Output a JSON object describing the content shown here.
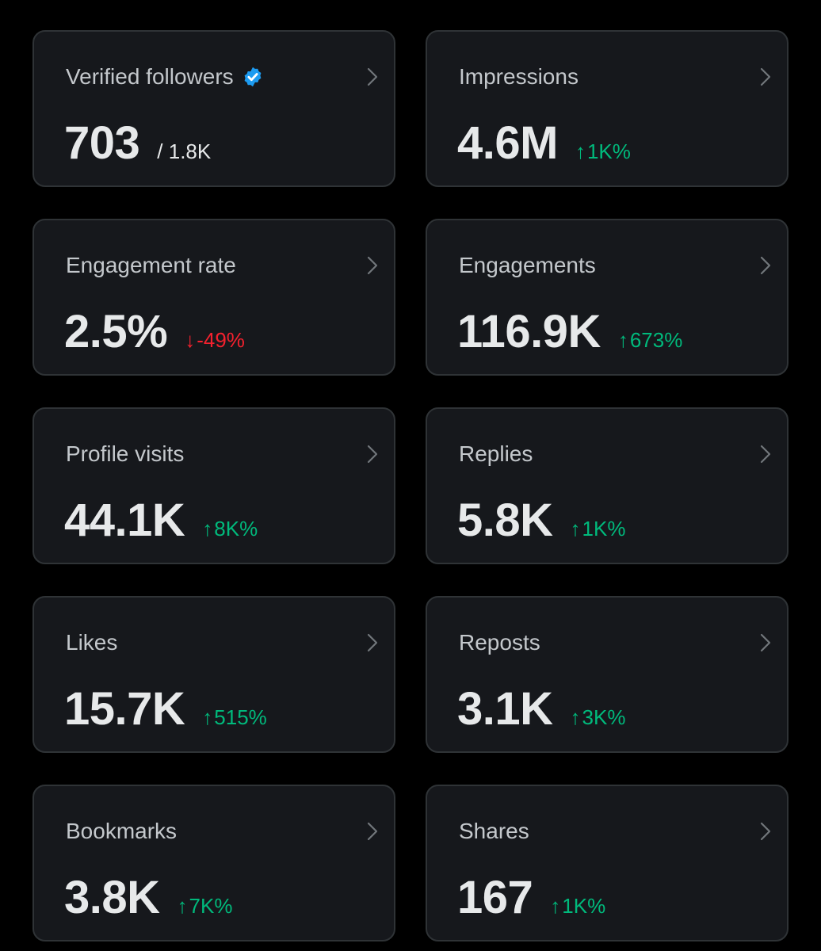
{
  "colors": {
    "background": "#000000",
    "card": "#16181c",
    "border": "#2f3336",
    "label": "#c4c8cc",
    "value": "#e7e9ea",
    "up": "#00ba7c",
    "down": "#f4212e",
    "verified": "#1d9bf0"
  },
  "metrics": [
    {
      "label": "Verified followers",
      "value": "703",
      "total": "/ 1.8K"
    },
    {
      "label": "Impressions",
      "value": "4.6M",
      "arrow": "↑",
      "delta": "1K%"
    },
    {
      "label": "Engagement rate",
      "value": "2.5%",
      "arrow": "↓",
      "delta": "-49%"
    },
    {
      "label": "Engagements",
      "value": "116.9K",
      "arrow": "↑",
      "delta": "673%"
    },
    {
      "label": "Profile visits",
      "value": "44.1K",
      "arrow": "↑",
      "delta": "8K%"
    },
    {
      "label": "Replies",
      "value": "5.8K",
      "arrow": "↑",
      "delta": "1K%"
    },
    {
      "label": "Likes",
      "value": "15.7K",
      "arrow": "↑",
      "delta": "515%"
    },
    {
      "label": "Reposts",
      "value": "3.1K",
      "arrow": "↑",
      "delta": "3K%"
    },
    {
      "label": "Bookmarks",
      "value": "3.8K",
      "arrow": "↑",
      "delta": "7K%"
    },
    {
      "label": "Shares",
      "value": "167",
      "arrow": "↑",
      "delta": "1K%"
    }
  ]
}
